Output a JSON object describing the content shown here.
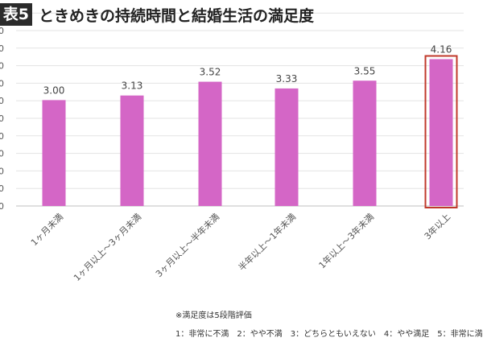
{
  "title": {
    "badge": "表5",
    "text": "ときめきの持続時間と結婚生活の満足度"
  },
  "chart_data": {
    "type": "bar",
    "categories": [
      "1ヶ月未満",
      "1ヶ月以上～3ヶ月未満",
      "3ヶ月以上～半年未満",
      "半年以上～1年未満",
      "1年以上～3年未満",
      "3年以上"
    ],
    "values": [
      3.0,
      3.13,
      3.52,
      3.33,
      3.55,
      4.16
    ],
    "value_labels": [
      "3.00",
      "3.13",
      "3.52",
      "3.33",
      "3.55",
      "4.16"
    ],
    "y_ticks": [
      "0",
      "0",
      "0",
      "0",
      "0",
      "0",
      "0",
      "0",
      "0",
      "0",
      "0",
      "0"
    ],
    "ylim": [
      0,
      4.4
    ],
    "highlighted_category": "3年以上",
    "bar_color": "#d466c6",
    "highlight_color": "#c0392b",
    "grid": true
  },
  "footnote": {
    "note": "※満足度は5段階評価",
    "scale": "1：非常に不満　2：やや不満　3：どちらともいえない　4：やや満足　5：非常に満"
  }
}
